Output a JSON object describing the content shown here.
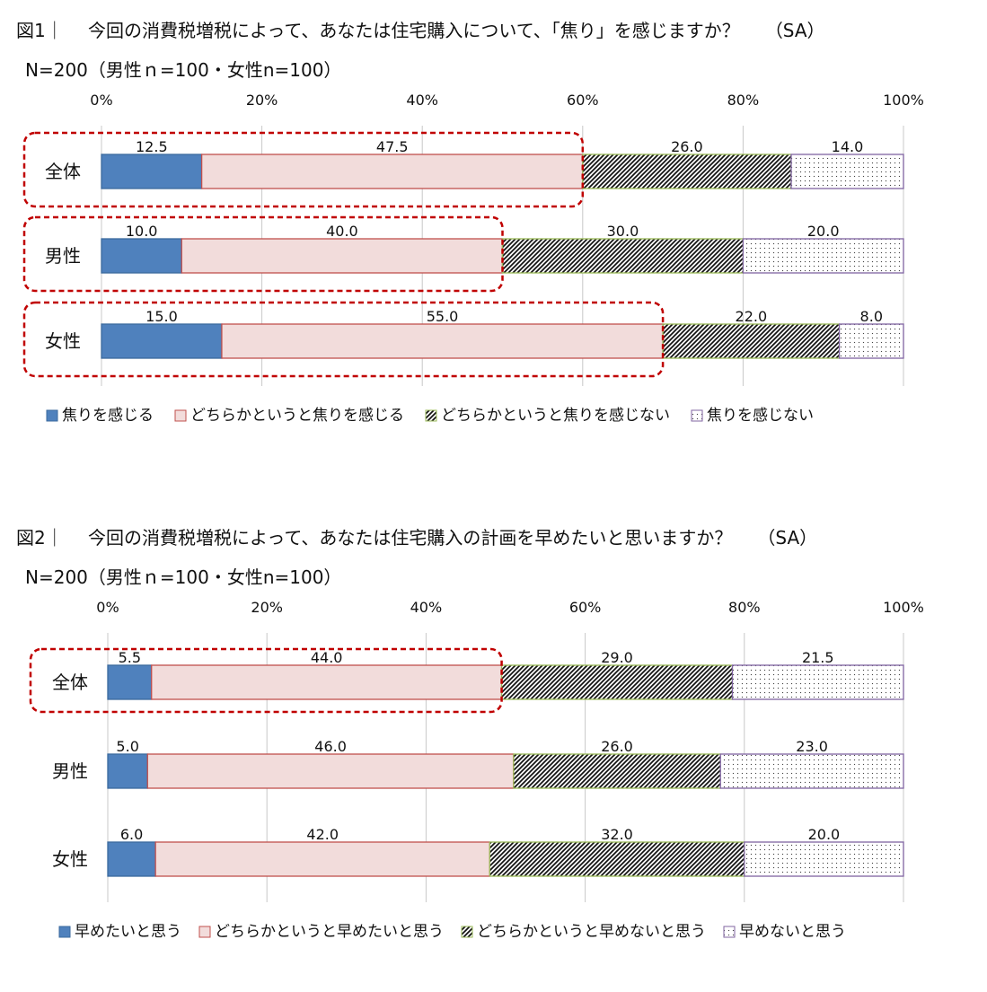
{
  "figures": [
    {
      "label": "図1｜",
      "question": "今回の消費税増税によって、あなたは住宅購入について、「焦り」を感じますか？",
      "sa": "（SA）",
      "sample": "N=200（男性ｎ=100・女性n=100）",
      "legend": [
        "焦りを感じる",
        "どちらかというと焦りを感じる",
        "どちらかというと焦りを感じない",
        "焦りを感じない"
      ]
    },
    {
      "label": "図2｜",
      "question": "今回の消費税増税によって、あなたは住宅購入の計画を早めたいと思いますか？",
      "sa": "（SA）",
      "sample": "N=200（男性ｎ=100・女性n=100）",
      "legend": [
        "早めたいと思う",
        "どちらかというと早めたいと思う",
        "どちらかというと早めないと思う",
        "早めないと思う"
      ]
    }
  ],
  "colors": {
    "s1": "#4f81bd",
    "s2": "#f2dcdb",
    "s2_border": "#c0504d",
    "s3_border": "#9bbb59",
    "s4_border": "#8064a2",
    "highlight": "#c00000"
  },
  "chart_data": [
    {
      "type": "bar",
      "orientation": "horizontal-stacked-100",
      "categories": [
        "全体",
        "男性",
        "女性"
      ],
      "series": [
        {
          "name": "焦りを感じる",
          "values": [
            12.5,
            10.0,
            15.0
          ]
        },
        {
          "name": "どちらかというと焦りを感じる",
          "values": [
            47.5,
            40.0,
            55.0
          ]
        },
        {
          "name": "どちらかというと焦りを感じない",
          "values": [
            26.0,
            30.0,
            22.0
          ]
        },
        {
          "name": "焦りを感じない",
          "values": [
            14.0,
            20.0,
            8.0
          ]
        }
      ],
      "labels": [
        [
          "12.5",
          "47.5",
          "26.0",
          "14.0"
        ],
        [
          "10.0",
          "40.0",
          "30.0",
          "20.0"
        ],
        [
          "15.0",
          "55.0",
          "22.0",
          "8.0"
        ]
      ],
      "xticks": [
        "0%",
        "20%",
        "40%",
        "60%",
        "80%",
        "100%"
      ],
      "xlim": [
        0,
        100
      ],
      "highlighted": [
        "全体",
        "男性",
        "女性"
      ],
      "grid": true,
      "legend_position": "bottom"
    },
    {
      "type": "bar",
      "orientation": "horizontal-stacked-100",
      "categories": [
        "全体",
        "男性",
        "女性"
      ],
      "series": [
        {
          "name": "早めたいと思う",
          "values": [
            5.5,
            5.0,
            6.0
          ]
        },
        {
          "name": "どちらかというと早めたいと思う",
          "values": [
            44.0,
            46.0,
            42.0
          ]
        },
        {
          "name": "どちらかというと早めないと思う",
          "values": [
            29.0,
            26.0,
            32.0
          ]
        },
        {
          "name": "早めないと思う",
          "values": [
            21.5,
            23.0,
            20.0
          ]
        }
      ],
      "labels": [
        [
          "5.5",
          "44.0",
          "29.0",
          "21.5"
        ],
        [
          "5.0",
          "46.0",
          "26.0",
          "23.0"
        ],
        [
          "6.0",
          "42.0",
          "32.0",
          "20.0"
        ]
      ],
      "xticks": [
        "0%",
        "20%",
        "40%",
        "60%",
        "80%",
        "100%"
      ],
      "xlim": [
        0,
        100
      ],
      "highlighted": [
        "全体"
      ],
      "grid": true,
      "legend_position": "bottom"
    }
  ]
}
